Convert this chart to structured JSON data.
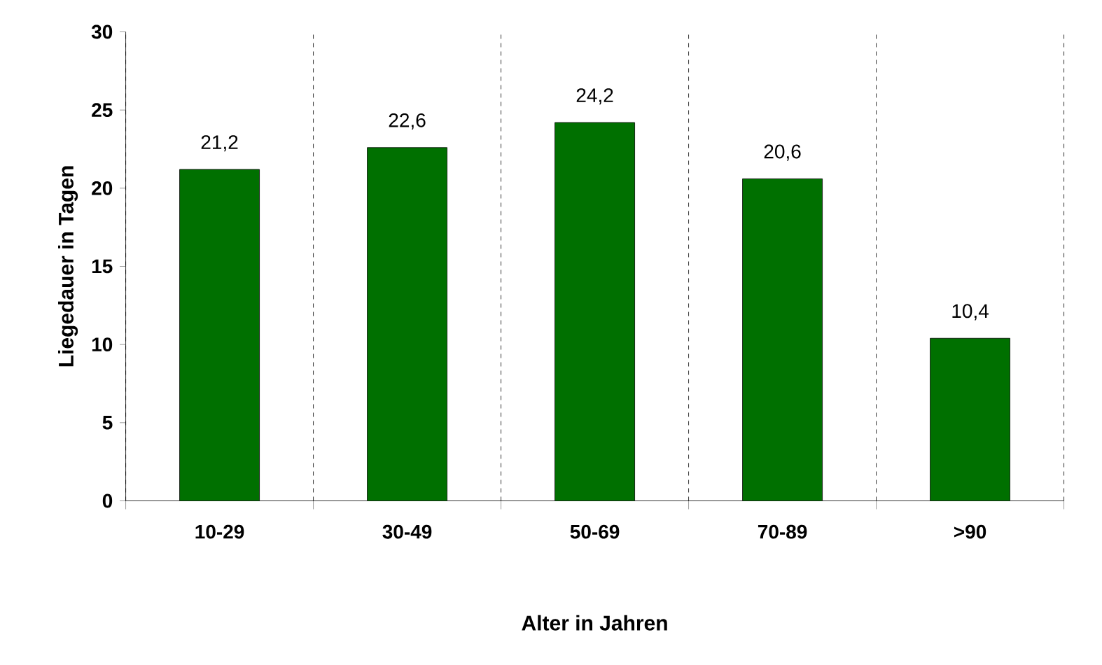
{
  "chart_data": {
    "type": "bar",
    "xlabel": "Alter in Jahren",
    "ylabel": "Liegedauer in Tagen",
    "categories": [
      "10-29",
      "30-49",
      "50-69",
      "70-89",
      ">90"
    ],
    "values": [
      21.2,
      22.6,
      24.2,
      20.6,
      10.4
    ],
    "value_labels": [
      "21,2",
      "22,6",
      "24,2",
      "20,6",
      "10,4"
    ],
    "color": "#007000",
    "ylim": [
      0,
      30
    ],
    "yticks": [
      0,
      5,
      10,
      15,
      20,
      25,
      30
    ],
    "grid": "x"
  }
}
